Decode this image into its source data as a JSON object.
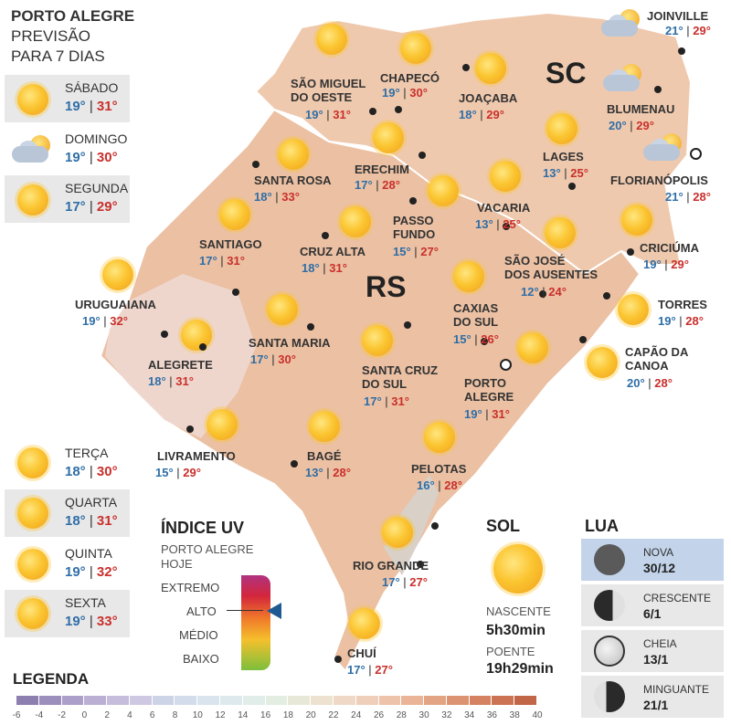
{
  "header": {
    "line1": "PORTO ALEGRE",
    "line2": "PREVISÃO",
    "line3": "PARA 7 DIAS"
  },
  "days_top": [
    {
      "name": "SÁBADO",
      "min": "19°",
      "max": "31°",
      "icon": "sun-icon"
    },
    {
      "name": "DOMINGO",
      "min": "19°",
      "max": "30°",
      "icon": "cloudy-sun-icon"
    },
    {
      "name": "SEGUNDA",
      "min": "17°",
      "max": "29°",
      "icon": "sun-icon"
    }
  ],
  "days_bottom": [
    {
      "name": "TERÇA",
      "min": "18°",
      "max": "30°"
    },
    {
      "name": "QUARTA",
      "min": "18°",
      "max": "31°"
    },
    {
      "name": "QUINTA",
      "min": "19°",
      "max": "32°"
    },
    {
      "name": "SEXTA",
      "min": "19°",
      "max": "33°"
    }
  ],
  "regions": {
    "sc": "SC",
    "rs": "RS"
  },
  "cities": [
    {
      "name": "SÃO MIGUEL",
      "name2": "DO OESTE",
      "min": "19°",
      "max": "31°"
    },
    {
      "name": "CHAPECÓ",
      "min": "19°",
      "max": "30°"
    },
    {
      "name": "JOAÇABA",
      "min": "18°",
      "max": "29°"
    },
    {
      "name": "JOINVILLE",
      "min": "21°",
      "max": "29°"
    },
    {
      "name": "BLUMENAU",
      "min": "20°",
      "max": "29°"
    },
    {
      "name": "LAGES",
      "min": "13°",
      "max": "25°"
    },
    {
      "name": "FLORIANÓPOLIS",
      "min": "21°",
      "max": "28°"
    },
    {
      "name": "SANTA ROSA",
      "min": "18°",
      "max": "33°"
    },
    {
      "name": "ERECHIM",
      "min": "17°",
      "max": "28°"
    },
    {
      "name": "VACARIA",
      "min": "13°",
      "max": "25°"
    },
    {
      "name": "SANTIAGO",
      "min": "17°",
      "max": "31°"
    },
    {
      "name": "CRUZ ALTA",
      "min": "18°",
      "max": "31°"
    },
    {
      "name": "PASSO",
      "name2": "FUNDO",
      "min": "15°",
      "max": "27°"
    },
    {
      "name": "SÃO JOSÉ",
      "name2": "DOS AUSENTES",
      "min": "12°",
      "max": "24°"
    },
    {
      "name": "CRICIÚMA",
      "min": "19°",
      "max": "29°"
    },
    {
      "name": "URUGUAIANA",
      "min": "19°",
      "max": "32°"
    },
    {
      "name": "TORRES",
      "min": "19°",
      "max": "28°"
    },
    {
      "name": "CAXIAS",
      "name2": "DO SUL",
      "min": "15°",
      "max": "26°"
    },
    {
      "name": "SANTA MARIA",
      "min": "17°",
      "max": "30°"
    },
    {
      "name": "ALEGRETE",
      "min": "18°",
      "max": "31°"
    },
    {
      "name": "CAPÃO DA",
      "name2": "CANOA",
      "min": "20°",
      "max": "28°"
    },
    {
      "name": "SANTA CRUZ",
      "name2": "DO SUL",
      "min": "17°",
      "max": "31°"
    },
    {
      "name": "PORTO",
      "name2": "ALEGRE",
      "min": "19°",
      "max": "31°"
    },
    {
      "name": "LIVRAMENTO",
      "min": "15°",
      "max": "29°"
    },
    {
      "name": "BAGÉ",
      "min": "13°",
      "max": "28°"
    },
    {
      "name": "PELOTAS",
      "min": "16°",
      "max": "28°"
    },
    {
      "name": "RIO GRANDE",
      "min": "17°",
      "max": "27°"
    },
    {
      "name": "CHUÍ",
      "min": "17°",
      "max": "27°"
    }
  ],
  "uv": {
    "title": "ÍNDICE UV",
    "sub1": "PORTO ALEGRE",
    "sub2": "HOJE",
    "levels": [
      "EXTREMO",
      "ALTO",
      "MÉDIO",
      "BAIXO"
    ],
    "current": "ALTO"
  },
  "sol": {
    "title": "SOL",
    "rise_label": "NASCENTE",
    "rise": "5h30min",
    "set_label": "POENTE",
    "set": "19h29min"
  },
  "lua": {
    "title": "LUA",
    "phases": [
      {
        "name": "NOVA",
        "date": "30/12"
      },
      {
        "name": "CRESCENTE",
        "date": "6/1"
      },
      {
        "name": "CHEIA",
        "date": "13/1"
      },
      {
        "name": "MINGUANTE",
        "date": "21/1"
      }
    ]
  },
  "legend": {
    "title": "LEGENDA",
    "ticks": [
      "-6",
      "-4",
      "-2",
      "0",
      "2",
      "4",
      "6",
      "8",
      "10",
      "12",
      "14",
      "16",
      "18",
      "20",
      "22",
      "24",
      "26",
      "28",
      "30",
      "32",
      "34",
      "36",
      "38",
      "40"
    ],
    "colors": [
      "#8d7fb0",
      "#9d8fbd",
      "#ac9fc9",
      "#bbb0d4",
      "#c6bddc",
      "#cfc8e3",
      "#cdd4e8",
      "#d3dcea",
      "#d9e4ee",
      "#dde9ec",
      "#e1ede8",
      "#e4ede1",
      "#e8e8d8",
      "#ece2cf",
      "#efd9c6",
      "#efcfb9",
      "#edc3a9",
      "#e9b497",
      "#e3a483",
      "#dc9371",
      "#d48262",
      "#cc7354",
      "#c26648"
    ]
  },
  "colors": {
    "min": "#2f6ea6",
    "max": "#c9302c"
  }
}
